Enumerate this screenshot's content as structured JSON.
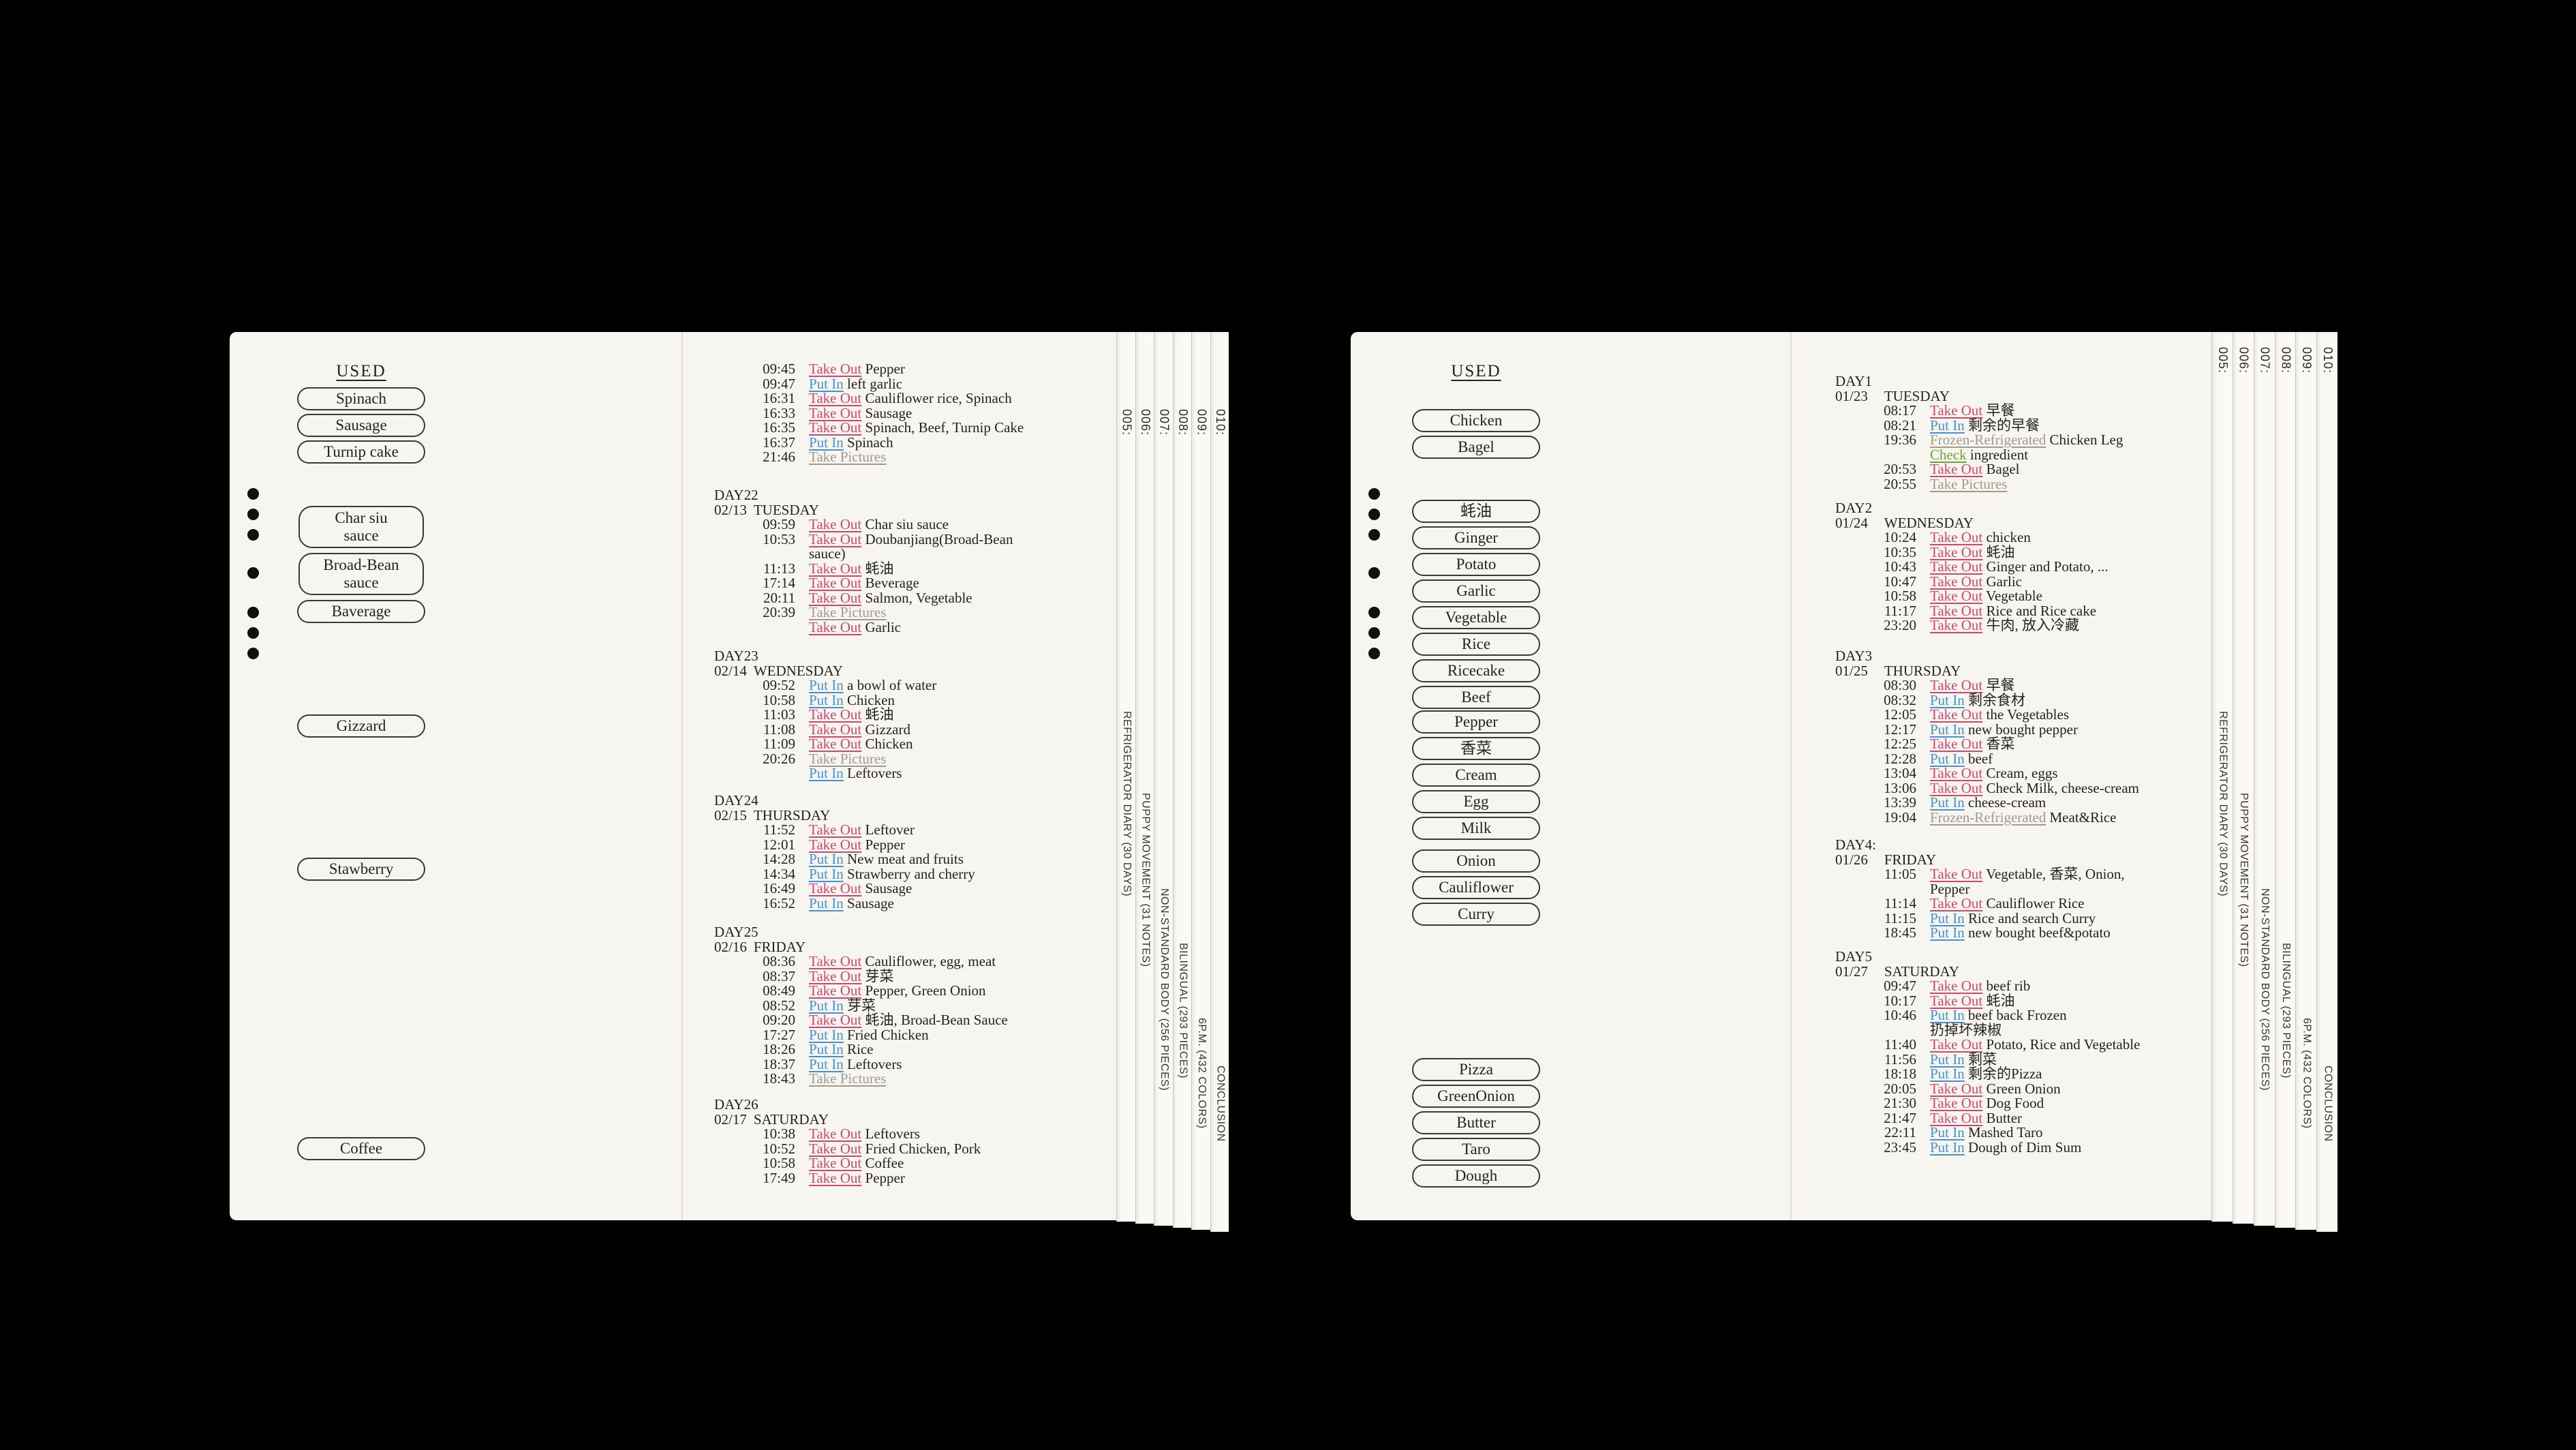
{
  "colors": {
    "background": "#000000",
    "paper": "#f7f5ef",
    "paper_edge": "#faf9f4",
    "ink": "#25231f",
    "take_out": "#d24672",
    "put_in": "#4591d2",
    "muted_gray": "#9d9a90",
    "check_green": "#6aa531",
    "pill_border": "#3b3934"
  },
  "edge_tabs": {
    "numbers": [
      "005:",
      "006:",
      "007:",
      "008:",
      "009:",
      "010:"
    ],
    "titles": [
      "REFRIGERATOR DIARY (30 DAYS)",
      "PUPPY MOVEMENT (31 NOTES)",
      "NON-STANDARD BODY (256 PIECES)",
      "BILINGUAL (293 PIECES)",
      "6P.M. (432 COLORS)",
      "CONCLUSION"
    ]
  },
  "pages": [
    {
      "used_label": "USED",
      "button_groups": [
        [
          "Spinach",
          "Sausage",
          "Turnip cake"
        ],
        [
          "Char siu\nsauce",
          "Broad-Bean\nsauce",
          "Baverage"
        ],
        [
          "Gizzard"
        ],
        [
          "Stawberry"
        ],
        [
          "Coffee"
        ]
      ],
      "days": [
        {
          "day": "",
          "date": "",
          "weekday": "",
          "rows": [
            {
              "t": "09:45",
              "a": "Take Out",
              "k": "out",
              "x": "Pepper"
            },
            {
              "t": "09:47",
              "a": "Put In",
              "k": "in",
              "x": "left garlic"
            },
            {
              "t": "16:31",
              "a": "Take Out",
              "k": "out",
              "x": "Cauliflower rice, Spinach"
            },
            {
              "t": "16:33",
              "a": "Take Out",
              "k": "out",
              "x": "Sausage"
            },
            {
              "t": "16:35",
              "a": "Take Out",
              "k": "out",
              "x": "Spinach, Beef, Turnip Cake"
            },
            {
              "t": "16:37",
              "a": "Put In",
              "k": "in",
              "x": "Spinach"
            },
            {
              "t": "21:46",
              "a": "Take Pictures",
              "k": "pic",
              "x": ""
            }
          ]
        },
        {
          "day": "DAY22",
          "date": "02/13",
          "weekday": "TUESDAY",
          "rows": [
            {
              "t": "09:59",
              "a": "Take Out",
              "k": "out",
              "x": "Char siu sauce"
            },
            {
              "t": "10:53",
              "a": "Take Out",
              "k": "out",
              "x": "Doubanjiang(Broad-Bean"
            },
            {
              "t": "",
              "a": "",
              "k": "",
              "x": "sauce)"
            },
            {
              "t": "11:13",
              "a": "Take Out",
              "k": "out",
              "x": "蚝油"
            },
            {
              "t": "17:14",
              "a": "Take Out",
              "k": "out",
              "x": "Beverage"
            },
            {
              "t": "20:11",
              "a": "Take Out",
              "k": "out",
              "x": "Salmon, Vegetable"
            },
            {
              "t": "20:39",
              "a": "Take Pictures",
              "k": "pic",
              "x": ""
            },
            {
              "t": "",
              "a": "Take Out",
              "k": "out",
              "x": "Garlic"
            }
          ]
        },
        {
          "day": "DAY23",
          "date": "02/14",
          "weekday": "WEDNESDAY",
          "rows": [
            {
              "t": "09:52",
              "a": "Put In",
              "k": "in",
              "x": "a bowl of water"
            },
            {
              "t": "10:58",
              "a": "Put In",
              "k": "in",
              "x": "Chicken"
            },
            {
              "t": "11:03",
              "a": "Take Out",
              "k": "out",
              "x": "蚝油"
            },
            {
              "t": "11:08",
              "a": "Take Out",
              "k": "out",
              "x": "Gizzard"
            },
            {
              "t": "11:09",
              "a": "Take Out",
              "k": "out",
              "x": "Chicken"
            },
            {
              "t": "20:26",
              "a": "Take Pictures",
              "k": "pic",
              "x": ""
            },
            {
              "t": "",
              "a": "Put In",
              "k": "in",
              "x": "Leftovers"
            }
          ]
        },
        {
          "day": "DAY24",
          "date": "02/15",
          "weekday": "THURSDAY",
          "rows": [
            {
              "t": "11:52",
              "a": "Take Out",
              "k": "out",
              "x": "Leftover"
            },
            {
              "t": "12:01",
              "a": "Take Out",
              "k": "out",
              "x": "Pepper"
            },
            {
              "t": "14:28",
              "a": "Put In",
              "k": "in",
              "x": "New meat and fruits"
            },
            {
              "t": "14:34",
              "a": "Put In",
              "k": "in",
              "x": "Strawberry and cherry"
            },
            {
              "t": "16:49",
              "a": "Take Out",
              "k": "out",
              "x": "Sausage"
            },
            {
              "t": "16:52",
              "a": "Put In",
              "k": "in",
              "x": "Sausage"
            }
          ]
        },
        {
          "day": "DAY25",
          "date": "02/16",
          "weekday": "FRIDAY",
          "rows": [
            {
              "t": "08:36",
              "a": "Take Out",
              "k": "out",
              "x": "Cauliflower, egg, meat"
            },
            {
              "t": "08:37",
              "a": "Take Out",
              "k": "out",
              "x": "芽菜"
            },
            {
              "t": "08:49",
              "a": "Take Out",
              "k": "out",
              "x": "Pepper, Green Onion"
            },
            {
              "t": "08:52",
              "a": "Put In",
              "k": "in",
              "x": "芽菜"
            },
            {
              "t": "09:20",
              "a": "Take Out",
              "k": "out",
              "x": "蚝油, Broad-Bean Sauce"
            },
            {
              "t": "17:27",
              "a": "Put In",
              "k": "in",
              "x": "Fried Chicken"
            },
            {
              "t": "18:26",
              "a": "Put In",
              "k": "in",
              "x": "Rice"
            },
            {
              "t": "18:37",
              "a": "Put In",
              "k": "in",
              "x": "Leftovers"
            },
            {
              "t": "18:43",
              "a": "Take Pictures",
              "k": "pic",
              "x": ""
            }
          ]
        },
        {
          "day": "DAY26",
          "date": "02/17",
          "weekday": "SATURDAY",
          "rows": [
            {
              "t": "10:38",
              "a": "Take Out",
              "k": "out",
              "x": "Leftovers"
            },
            {
              "t": "10:52",
              "a": "Take Out",
              "k": "out",
              "x": "Fried Chicken, Pork"
            },
            {
              "t": "10:58",
              "a": "Take Out",
              "k": "out",
              "x": "Coffee"
            },
            {
              "t": "17:49",
              "a": "Take Out",
              "k": "out",
              "x": "Pepper"
            }
          ]
        }
      ]
    },
    {
      "used_label": "USED",
      "button_groups": [
        [
          "Chicken",
          "Bagel"
        ],
        [
          "蚝油",
          "Ginger",
          "Potato",
          "Garlic",
          "Vegetable",
          "Rice",
          "Ricecake",
          "Beef"
        ],
        [
          "Pepper",
          "香菜",
          "Cream",
          "Egg",
          "Milk"
        ],
        [
          "Onion",
          "Cauliflower",
          "Curry"
        ],
        [
          "Pizza",
          "GreenOnion",
          "Butter",
          "Taro",
          "Dough"
        ]
      ],
      "days": [
        {
          "day": "DAY1",
          "date": "01/23",
          "weekday": "TUESDAY",
          "rows": [
            {
              "t": "08:17",
              "a": "Take Out",
              "k": "out",
              "x": "早餐"
            },
            {
              "t": "08:21",
              "a": "Put In",
              "k": "in",
              "x": "剩余的早餐"
            },
            {
              "t": "19:36",
              "a": "Frozen-Refrigerated",
              "k": "frozen",
              "x": "Chicken Leg"
            },
            {
              "t": "",
              "a": "Check",
              "k": "check",
              "x": "ingredient"
            },
            {
              "t": "20:53",
              "a": "Take Out",
              "k": "out",
              "x": "Bagel"
            },
            {
              "t": "20:55",
              "a": "Take Pictures",
              "k": "pic",
              "x": ""
            }
          ]
        },
        {
          "day": "DAY2",
          "date": "01/24",
          "weekday": "WEDNESDAY",
          "rows": [
            {
              "t": "10:24",
              "a": "Take Out",
              "k": "out",
              "x": "chicken"
            },
            {
              "t": "10:35",
              "a": "Take Out",
              "k": "out",
              "x": "蚝油"
            },
            {
              "t": "10:43",
              "a": "Take Out",
              "k": "out",
              "x": "Ginger and Potato, ..."
            },
            {
              "t": "10:47",
              "a": "Take Out",
              "k": "out",
              "x": "Garlic"
            },
            {
              "t": "10:58",
              "a": "Take Out",
              "k": "out",
              "x": "Vegetable"
            },
            {
              "t": "11:17",
              "a": "Take Out",
              "k": "out",
              "x": "Rice and Rice cake"
            },
            {
              "t": "23:20",
              "a": "Take Out",
              "k": "out",
              "x": "牛肉, 放入冷藏"
            }
          ]
        },
        {
          "day": "DAY3",
          "date": "01/25",
          "weekday": "THURSDAY",
          "rows": [
            {
              "t": "08:30",
              "a": "Take Out",
              "k": "out",
              "x": "早餐"
            },
            {
              "t": "08:32",
              "a": "Put In",
              "k": "in",
              "x": "剩余食材"
            },
            {
              "t": "12:05",
              "a": "Take Out",
              "k": "out",
              "x": "the Vegetables"
            },
            {
              "t": "12:17",
              "a": "Put In",
              "k": "in",
              "x": "new bought pepper"
            },
            {
              "t": "12:25",
              "a": "Take Out",
              "k": "out",
              "x": "香菜"
            },
            {
              "t": "12:28",
              "a": "Put In",
              "k": "in",
              "x": "beef"
            },
            {
              "t": "13:04",
              "a": "Take Out",
              "k": "out",
              "x": "Cream, eggs"
            },
            {
              "t": "13:06",
              "a": "Take Out",
              "k": "out",
              "x": "Check Milk, cheese-cream"
            },
            {
              "t": "13:39",
              "a": "Put In",
              "k": "in",
              "x": "cheese-cream"
            },
            {
              "t": "19:04",
              "a": "Frozen-Refrigerated",
              "k": "frozen",
              "x": "Meat&Rice"
            }
          ]
        },
        {
          "day": "DAY4:",
          "date": "01/26",
          "weekday": "FRIDAY",
          "rows": [
            {
              "t": "11:05",
              "a": "Take Out",
              "k": "out",
              "x": "Vegetable, 香菜, Onion,"
            },
            {
              "t": "",
              "a": "",
              "k": "",
              "x": "Pepper"
            },
            {
              "t": "11:14",
              "a": "Take Out",
              "k": "out",
              "x": "Cauliflower Rice"
            },
            {
              "t": "11:15",
              "a": "Put In",
              "k": "in",
              "x": "Rice and search Curry"
            },
            {
              "t": "18:45",
              "a": "Put In",
              "k": "in",
              "x": "new bought beef&potato"
            }
          ]
        },
        {
          "day": "DAY5",
          "date": "01/27",
          "weekday": "SATURDAY",
          "rows": [
            {
              "t": "09:47",
              "a": "Take Out",
              "k": "out",
              "x": "beef rib"
            },
            {
              "t": "10:17",
              "a": "Take Out",
              "k": "out",
              "x": "蚝油"
            },
            {
              "t": "10:46",
              "a": "Put In",
              "k": "in",
              "x": "beef back Frozen"
            },
            {
              "t": "",
              "a": "",
              "k": "",
              "x": "扔掉坏辣椒"
            },
            {
              "t": "11:40",
              "a": "Take Out",
              "k": "out",
              "x": "Potato, Rice and Vegetable"
            },
            {
              "t": "11:56",
              "a": "Put In",
              "k": "in",
              "x": "剩菜"
            },
            {
              "t": "18:18",
              "a": "Put In",
              "k": "in",
              "x": "剩余的Pizza"
            },
            {
              "t": "20:05",
              "a": "Take Out",
              "k": "out",
              "x": "Green Onion"
            },
            {
              "t": "21:30",
              "a": "Take Out",
              "k": "out",
              "x": "Dog Food"
            },
            {
              "t": "21:47",
              "a": "Take Out",
              "k": "out",
              "x": "Butter"
            },
            {
              "t": "22:11",
              "a": "Put In",
              "k": "in",
              "x": "Mashed Taro"
            },
            {
              "t": "23:45",
              "a": "Put In",
              "k": "in",
              "x": "Dough of Dim Sum"
            }
          ]
        }
      ]
    }
  ]
}
